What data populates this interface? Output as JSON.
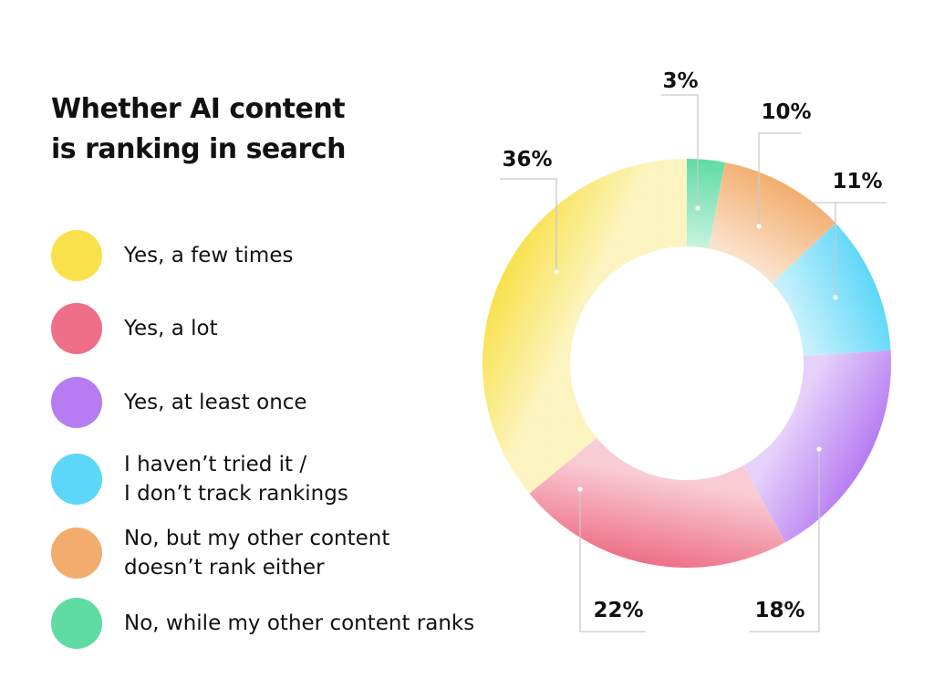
{
  "chart_data": {
    "type": "pie",
    "variant": "donut",
    "title": "Whether AI content is ranking in search",
    "title_lines": [
      "Whether AI content",
      "is ranking in search"
    ],
    "slices": [
      {
        "label": "No, while my other content ranks",
        "value": 3,
        "display": "3%",
        "color": "#5fdca4"
      },
      {
        "label": "No, but my other content doesn’t rank either",
        "value": 10,
        "display": "10%",
        "color": "#f2ad6e"
      },
      {
        "label": "I haven’t tried it / I don’t track rankings",
        "value": 11,
        "display": "11%",
        "color": "#5dd7f8"
      },
      {
        "label": "Yes, at least once",
        "value": 18,
        "display": "18%",
        "color": "#b77cf2"
      },
      {
        "label": "Yes, a lot",
        "value": 22,
        "display": "22%",
        "color": "#ee6f87"
      },
      {
        "label": "Yes, a few times",
        "value": 36,
        "display": "36%",
        "color": "#f8e14c"
      }
    ],
    "legend": [
      {
        "lines": [
          "Yes, a few times"
        ],
        "color": "#f8e14c"
      },
      {
        "lines": [
          "Yes, a lot"
        ],
        "color": "#ee6f87"
      },
      {
        "lines": [
          "Yes, at least once"
        ],
        "color": "#b77cf2"
      },
      {
        "lines": [
          "I haven’t tried it /",
          "I don’t track rankings"
        ],
        "color": "#5dd7f8"
      },
      {
        "lines": [
          "No, but my other content",
          "doesn’t rank either"
        ],
        "color": "#f2ad6e"
      },
      {
        "lines": [
          "No, while my other content ranks"
        ],
        "color": "#5fdca4"
      }
    ],
    "legend_placement": "left"
  }
}
